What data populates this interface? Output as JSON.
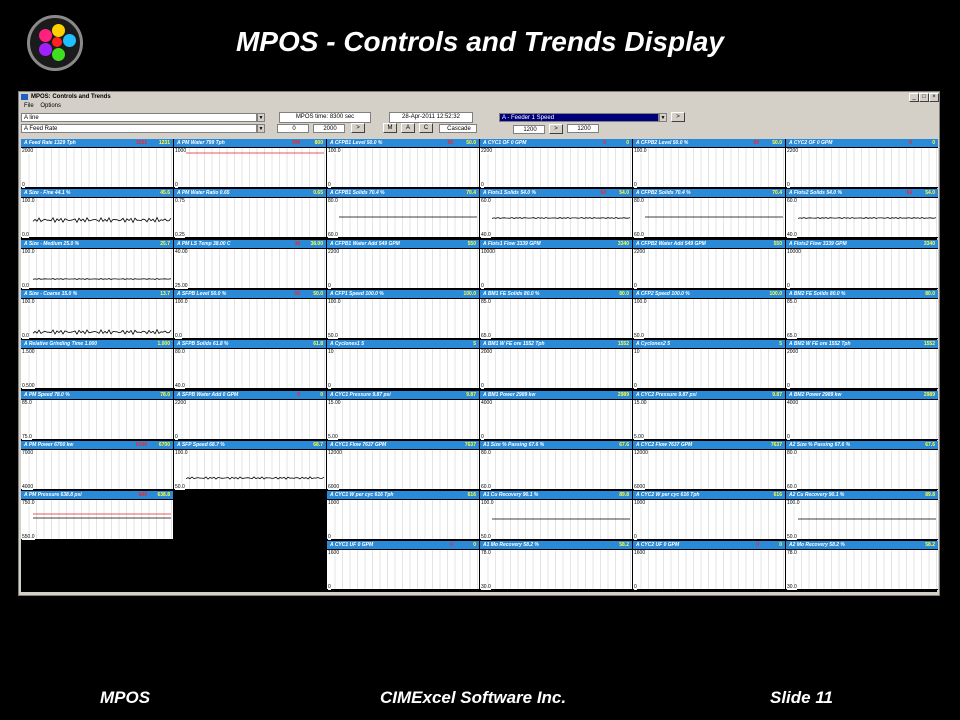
{
  "slide": {
    "title": "MPOS - Controls and Trends Display",
    "footer_left": "MPOS",
    "footer_center": "CIMExcel Software Inc.",
    "footer_right": "Slide 11"
  },
  "window": {
    "title": "MPOS: Controls and Trends",
    "menu": [
      "File",
      "Options"
    ]
  },
  "controls": {
    "line_select": "A line",
    "feed_rate_select": "A Feed Rate",
    "mpos_time_label": "MPOS time: 8300 sec",
    "value_left": "0",
    "value_right": "2000",
    "go_label": ">",
    "datetime": "28-Apr-2011 12:52:32",
    "btn_m": "M",
    "btn_a": "A",
    "btn_c": "C",
    "cascade": "Cascade",
    "feeder_select": "A - Feeder 1 Speed",
    "feeder_go": ">",
    "feeder_value": "1200",
    "feeder_setpoint": "1200"
  },
  "colors": {
    "panel_header": "#2a8ad8",
    "plot_bg": "#ffffff",
    "alarm_red": "#ff2020",
    "value_yellow": "#ffff40"
  },
  "panels": [
    {
      "title": "A Feed Rate 1329 Tph",
      "red": "1231",
      "yellow": "1231",
      "top": "2000",
      "bottom": "0",
      "trace": "none"
    },
    {
      "title": "A PM Water 799 Tph",
      "red": "799",
      "yellow": "800",
      "top": "1000",
      "bottom": "0",
      "trace": "redtop"
    },
    {
      "title": "A CFPB1 Level 50.0 %",
      "red": "50",
      "yellow": "50.0",
      "top": "100.0",
      "bottom": "0",
      "trace": "none"
    },
    {
      "title": "A CYC1 OF 0 GPM",
      "red": "0",
      "yellow": "0",
      "top": "2200",
      "bottom": "0",
      "trace": "none"
    },
    {
      "title": "A CFPB2 Level 50.0 %",
      "red": "50",
      "yellow": "50.0",
      "top": "100.0",
      "bottom": "0",
      "trace": "none"
    },
    {
      "title": "A CYC2 OF 0 GPM",
      "red": "0",
      "yellow": "0",
      "top": "2200",
      "bottom": "0",
      "trace": "none"
    },
    {
      "title": "A Size - Fine 44.1 %",
      "red": "",
      "yellow": "45.6",
      "top": "100.0",
      "bottom": "0.0",
      "trace": "noisy"
    },
    {
      "title": "A PM Water Ratio 0.65",
      "red": "",
      "yellow": "0.65",
      "top": "0.75",
      "bottom": "0.25",
      "trace": "none"
    },
    {
      "title": "A CFPB1 Solids 70.4 %",
      "red": "",
      "yellow": "70.4",
      "top": "80.0",
      "bottom": "60.0",
      "trace": "flat"
    },
    {
      "title": "A Flots1 Solids 54.0 %",
      "red": "54",
      "yellow": "54.0",
      "top": "60.0",
      "bottom": "40.0",
      "trace": "flatdots"
    },
    {
      "title": "A CFPB2 Solids 70.4 %",
      "red": "",
      "yellow": "70.4",
      "top": "80.0",
      "bottom": "60.0",
      "trace": "flat"
    },
    {
      "title": "A Flots2 Solids 54.0 %",
      "red": "54",
      "yellow": "54.0",
      "top": "60.0",
      "bottom": "40.0",
      "trace": "flatdots"
    },
    {
      "title": "A Size - Medium 25.0 %",
      "red": "",
      "yellow": "25.7",
      "top": "100.0",
      "bottom": "0.0",
      "trace": "low"
    },
    {
      "title": "A PM LS Temp 38.00 C",
      "red": "38",
      "yellow": "38.00",
      "top": "40.00",
      "bottom": "25.00",
      "trace": "none"
    },
    {
      "title": "A CFPB1 Water Add 549 GPM",
      "red": "",
      "yellow": "550",
      "top": "2200",
      "bottom": "0",
      "trace": "none"
    },
    {
      "title": "A Flots1 Flow 3339 GPM",
      "red": "",
      "yellow": "3340",
      "top": "10000",
      "bottom": "0",
      "trace": "none"
    },
    {
      "title": "A CFPB2 Water Add 549 GPM",
      "red": "",
      "yellow": "550",
      "top": "2200",
      "bottom": "0",
      "trace": "none"
    },
    {
      "title": "A Flots2 Flow 3339 GPM",
      "red": "",
      "yellow": "3340",
      "top": "10000",
      "bottom": "0",
      "trace": "none"
    },
    {
      "title": "A Size - Coarse 15.0 %",
      "red": "",
      "yellow": "13.7",
      "top": "100.0",
      "bottom": "0.0",
      "trace": "noisylow"
    },
    {
      "title": "A SFPB Level 50.0 %",
      "red": "50",
      "yellow": "50.0",
      "top": "100.0",
      "bottom": "0.0",
      "trace": "none"
    },
    {
      "title": "A CFP1 Speed 100.0 %",
      "red": "",
      "yellow": "100.0",
      "top": "100.0",
      "bottom": "50.0",
      "trace": "none"
    },
    {
      "title": "A BM1 FE Solids 80.0 %",
      "red": "",
      "yellow": "80.0",
      "top": "85.0",
      "bottom": "65.0",
      "trace": "none"
    },
    {
      "title": "A CFP2 Speed 100.0 %",
      "red": "",
      "yellow": "100.0",
      "top": "100.0",
      "bottom": "50.0",
      "trace": "none"
    },
    {
      "title": "A BM2 FE Solids 80.0 %",
      "red": "",
      "yellow": "80.0",
      "top": "85.0",
      "bottom": "65.0",
      "trace": "none"
    },
    {
      "title": "A Relative Grinding Time 1.000",
      "red": "",
      "yellow": "1.000",
      "top": "1.500",
      "bottom": "0.500",
      "trace": "none"
    },
    {
      "title": "A SFPB Solids 61.8 %",
      "red": "",
      "yellow": "61.8",
      "top": "80.0",
      "bottom": "40.0",
      "trace": "none"
    },
    {
      "title": "A Cyclones1 5",
      "red": "",
      "yellow": "5",
      "top": "10",
      "bottom": "0",
      "trace": "none"
    },
    {
      "title": "A BM1 W FE ore 1552 Tph",
      "red": "",
      "yellow": "1552",
      "top": "2000",
      "bottom": "0",
      "trace": "none"
    },
    {
      "title": "A Cyclones2 5",
      "red": "",
      "yellow": "5",
      "top": "10",
      "bottom": "0",
      "trace": "none"
    },
    {
      "title": "A BM2 W FE ore 1552 Tph",
      "red": "",
      "yellow": "1552",
      "top": "2000",
      "bottom": "0",
      "trace": "none"
    },
    {
      "title": "A PM Speed 78.0 %",
      "red": "",
      "yellow": "78.0",
      "top": "85.0",
      "bottom": "75.0",
      "trace": "none"
    },
    {
      "title": "A SFPB Water Add 0 GPM",
      "red": "0",
      "yellow": "0",
      "top": "2200",
      "bottom": "0",
      "trace": "none"
    },
    {
      "title": "A CYC1 Pressure 9.87 psi",
      "red": "",
      "yellow": "9.87",
      "top": "15.00",
      "bottom": "5.00",
      "trace": "none"
    },
    {
      "title": "A BM1 Power 2989 kw",
      "red": "",
      "yellow": "2989",
      "top": "4000",
      "bottom": "0",
      "trace": "none"
    },
    {
      "title": "A CYC2 Pressure 9.87 psi",
      "red": "",
      "yellow": "9.87",
      "top": "15.00",
      "bottom": "5.00",
      "trace": "none"
    },
    {
      "title": "A BM2 Power 2989 kw",
      "red": "",
      "yellow": "2989",
      "top": "4000",
      "bottom": "0",
      "trace": "none"
    },
    {
      "title": "A PM Power 6700 kw",
      "red": "6700",
      "yellow": "6700",
      "top": "7000",
      "bottom": "4000",
      "trace": "none"
    },
    {
      "title": "A SFP Speed 68.7 %",
      "red": "",
      "yellow": "68.7",
      "top": "100.0",
      "bottom": "50.0",
      "trace": "noisymid"
    },
    {
      "title": "A CYC1 Flow 7637 GPM",
      "red": "",
      "yellow": "7637",
      "top": "12000",
      "bottom": "6000",
      "trace": "none"
    },
    {
      "title": "A1 Size % Passing 67.6 %",
      "red": "",
      "yellow": "67.6",
      "top": "80.0",
      "bottom": "60.0",
      "trace": "none"
    },
    {
      "title": "A CYC2 Flow 7637 GPM",
      "red": "",
      "yellow": "7637",
      "top": "12000",
      "bottom": "6000",
      "trace": "none"
    },
    {
      "title": "A2 Size % Passing 67.6 %",
      "red": "",
      "yellow": "67.6",
      "top": "80.0",
      "bottom": "60.0",
      "trace": "none"
    },
    {
      "title": "A PM Pressure 638.8 psi",
      "red": "600",
      "yellow": "638.8",
      "top": "750.0",
      "bottom": "550.0",
      "trace": "redmid"
    },
    null,
    {
      "title": "A CYC1 W per cyc 616 Tph",
      "red": "",
      "yellow": "616",
      "top": "1000",
      "bottom": "0",
      "trace": "none"
    },
    {
      "title": "A1 Cu Recovery 90.1 %",
      "red": "",
      "yellow": "89.8",
      "top": "100.0",
      "bottom": "50.0",
      "trace": "flat"
    },
    {
      "title": "A CYC2 W per cyc 616 Tph",
      "red": "",
      "yellow": "616",
      "top": "1000",
      "bottom": "0",
      "trace": "none"
    },
    {
      "title": "A2 Cu Recovery 90.1 %",
      "red": "",
      "yellow": "89.8",
      "top": "100.0",
      "bottom": "50.0",
      "trace": "flat"
    },
    null,
    null,
    {
      "title": "A CYC1 UF 0 GPM",
      "red": "0",
      "yellow": "0",
      "top": "1600",
      "bottom": "0",
      "trace": "none"
    },
    {
      "title": "A1 Mo Recovery 58.2 %",
      "red": "",
      "yellow": "58.2",
      "top": "78.0",
      "bottom": "30.0",
      "trace": "none"
    },
    {
      "title": "A CYC2 UF 0 GPM",
      "red": "0",
      "yellow": "0",
      "top": "1600",
      "bottom": "0",
      "trace": "none"
    },
    {
      "title": "A2 Mo Recovery 58.2 %",
      "red": "",
      "yellow": "58.2",
      "top": "78.0",
      "bottom": "30.0",
      "trace": "none"
    }
  ]
}
